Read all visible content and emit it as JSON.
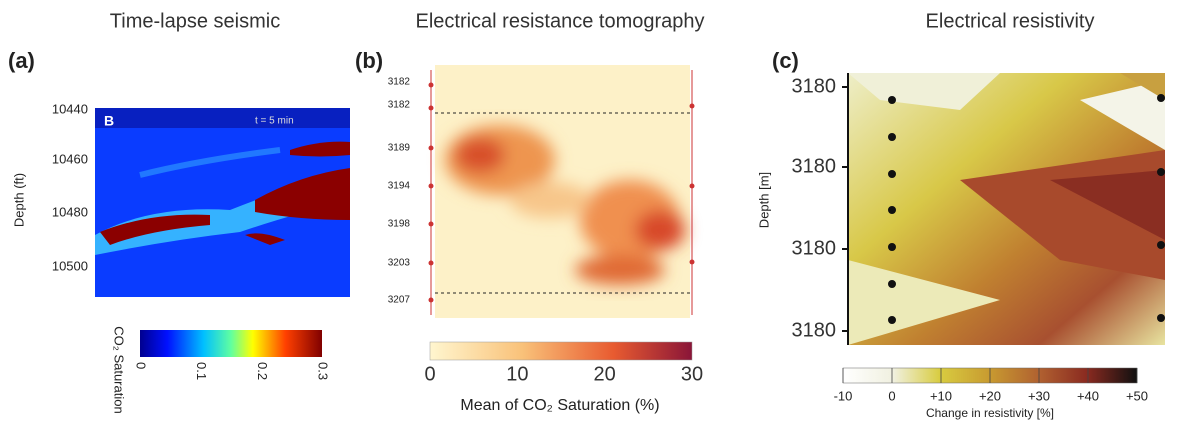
{
  "panels": [
    {
      "title": "Time-lapse seismic",
      "label": "(a)",
      "ylabel": "Depth (ft)",
      "annotation": "B",
      "time": "t = 5 min",
      "yticks": [
        "10440",
        "10460",
        "10480",
        "10500"
      ],
      "colorbar": {
        "label": "CO₂ Saturation",
        "ticks": [
          "0",
          "0.1",
          "0.2",
          "0.3"
        ]
      }
    },
    {
      "title": "Electrical resistance tomography",
      "label": "(b)",
      "yticks": [
        "3182",
        "3182",
        "3189",
        "3194",
        "3198",
        "3203",
        "3207"
      ],
      "colorbar": {
        "label": "Mean of CO₂ Saturation (%)",
        "ticks": [
          "0",
          "10",
          "20",
          "30"
        ]
      }
    },
    {
      "title": "Electrical resistivity",
      "label": "(c)",
      "ylabel": "Depth [m]",
      "yticks": [
        "3180",
        "3180",
        "3180",
        "3180"
      ],
      "colorbar": {
        "label": "Change in resistivity [%]",
        "ticks": [
          "-10",
          "0",
          "+10",
          "+20",
          "+30",
          "+40",
          "+50"
        ]
      }
    }
  ]
}
